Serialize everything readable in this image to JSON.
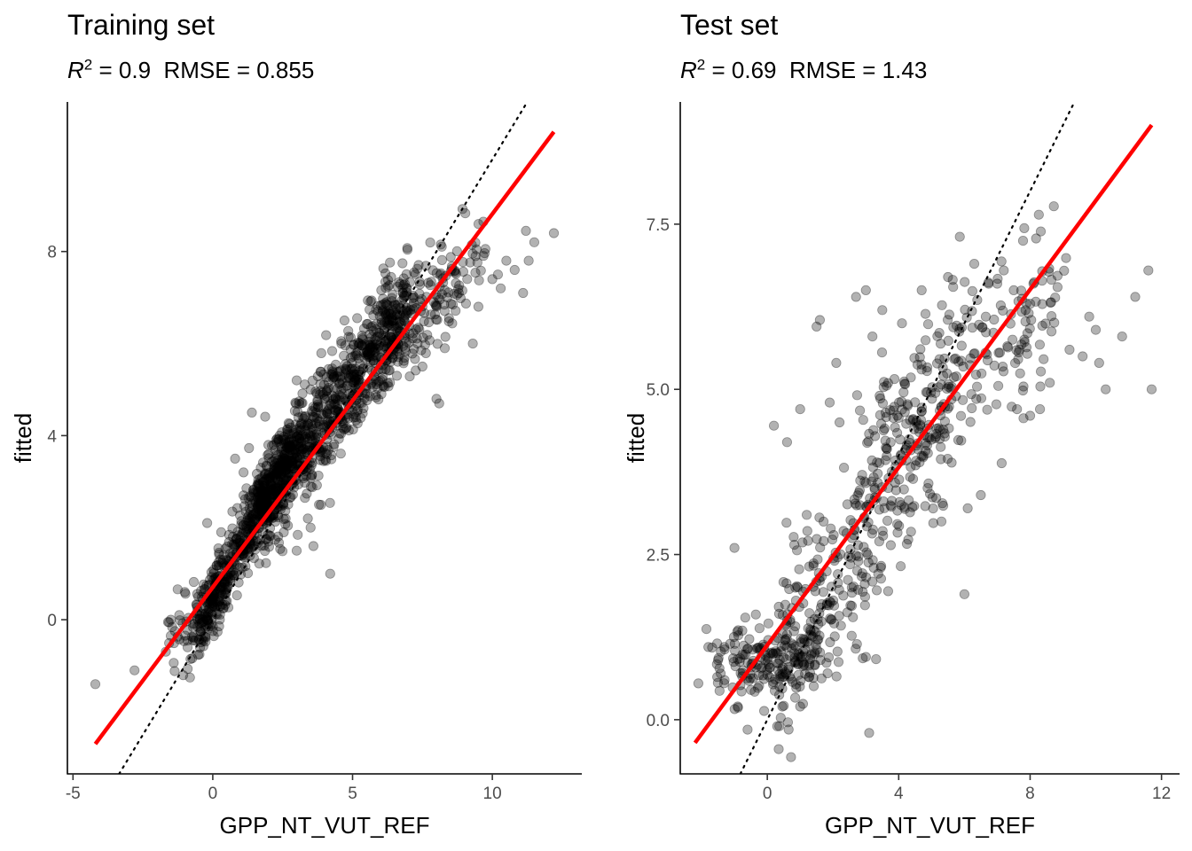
{
  "chart_data": [
    {
      "type": "scatter",
      "title": "Training set",
      "subtitle": {
        "r2_label": "R",
        "r2_exp": "2",
        "r2_value": " = 0.9",
        "rmse_text": "RMSE = 0.855"
      },
      "xlabel": "GPP_NT_VUT_REF",
      "ylabel": "fitted",
      "xlim": [
        -5.2,
        13.2
      ],
      "ylim": [
        -3.35,
        11.25
      ],
      "xticks": [
        -5,
        0,
        5,
        10
      ],
      "xtick_labels": [
        "-5",
        "0",
        "5",
        "10"
      ],
      "yticks": [
        0,
        4,
        8
      ],
      "ytick_labels": [
        "0",
        "4",
        "8"
      ],
      "grid": false,
      "identity_line": {
        "style": "dotted",
        "color": "#000000"
      },
      "fit_line": {
        "x": [
          -4.2,
          12.2
        ],
        "y": [
          -2.7,
          10.6
        ],
        "color": "#ff0000"
      },
      "points_color": "#000000",
      "points_opacity": 0.3,
      "point_clouds": [
        {
          "x": [
            -0.5,
            3.0
          ],
          "y_intercept": 0.45,
          "slope": 1.15,
          "spread": 0.38,
          "n": 520
        },
        {
          "x": [
            1.5,
            7.0
          ],
          "y_intercept": 1.0,
          "slope": 0.85,
          "spread": 0.6,
          "n": 850
        },
        {
          "x": [
            6.0,
            9.5
          ],
          "y_intercept": 2.2,
          "slope": 0.6,
          "spread": 0.55,
          "n": 170
        },
        {
          "x": [
            -1.6,
            0.5
          ],
          "y_intercept": 0.3,
          "slope": 0.6,
          "spread": 0.4,
          "n": 70
        }
      ],
      "points": [
        [
          -4.2,
          -1.4
        ],
        [
          -2.8,
          -1.1
        ],
        [
          -1.5,
          -0.35
        ],
        [
          -1.6,
          -0.05
        ],
        [
          -1.5,
          0.0
        ],
        [
          -1.2,
          0.1
        ],
        [
          -0.9,
          -0.6
        ],
        [
          -0.7,
          -0.4
        ],
        [
          -1.0,
          0.6
        ],
        [
          -0.2,
          2.1
        ],
        [
          0.3,
          1.9
        ],
        [
          0.5,
          1.3
        ],
        [
          0.2,
          1.55
        ],
        [
          0.7,
          2.35
        ],
        [
          1.5,
          2.6
        ],
        [
          1.1,
          3.2
        ],
        [
          0.8,
          3.5
        ],
        [
          1.1,
          2.7
        ],
        [
          1.4,
          4.5
        ],
        [
          2.0,
          3.6
        ],
        [
          2.2,
          3.3
        ],
        [
          3.5,
          2.0
        ],
        [
          3.6,
          1.6
        ],
        [
          4.2,
          1.0
        ],
        [
          3.0,
          1.5
        ],
        [
          3.8,
          2.5
        ],
        [
          3.4,
          2.2
        ],
        [
          4.1,
          4.2
        ],
        [
          3.5,
          5.0
        ],
        [
          3.0,
          5.2
        ],
        [
          4.6,
          6.0
        ],
        [
          6.3,
          6.7
        ],
        [
          6.8,
          6.7
        ],
        [
          7.5,
          5.5
        ],
        [
          8.3,
          5.9
        ],
        [
          8.1,
          4.7
        ],
        [
          8.0,
          4.8
        ],
        [
          9.3,
          6.0
        ],
        [
          8.0,
          6.8
        ],
        [
          9.5,
          6.8
        ],
        [
          10.2,
          7.5
        ],
        [
          10.3,
          7.2
        ],
        [
          10.5,
          7.8
        ],
        [
          10.8,
          7.6
        ],
        [
          11.3,
          7.8
        ],
        [
          11.1,
          7.1
        ],
        [
          11.5,
          8.2
        ],
        [
          11.2,
          8.45
        ],
        [
          12.2,
          8.4
        ],
        [
          10.0,
          7.4
        ],
        [
          9.4,
          7.9
        ],
        [
          8.8,
          7.1
        ]
      ]
    },
    {
      "type": "scatter",
      "title": "Test set",
      "subtitle": {
        "r2_label": "R",
        "r2_exp": "2",
        "r2_value": " = 0.69",
        "rmse_text": "RMSE = 1.43"
      },
      "xlabel": "GPP_NT_VUT_REF",
      "ylabel": "fitted",
      "xlim": [
        -2.65,
        12.55
      ],
      "ylim": [
        -0.82,
        9.35
      ],
      "xticks": [
        0,
        4,
        8,
        12
      ],
      "xtick_labels": [
        "0",
        "4",
        "8",
        "12"
      ],
      "yticks": [
        0.0,
        2.5,
        5.0,
        7.5
      ],
      "ytick_labels": [
        "0.0",
        "2.5",
        "5.0",
        "7.5"
      ],
      "grid": false,
      "identity_line": {
        "style": "dotted",
        "color": "#000000"
      },
      "fit_line": {
        "x": [
          -2.2,
          11.7
        ],
        "y": [
          -0.35,
          9.0
        ],
        "color": "#ff0000"
      },
      "points_color": "#000000",
      "points_opacity": 0.3,
      "point_clouds": [
        {
          "x": [
            -1.5,
            1.8
          ],
          "y_intercept": 0.9,
          "slope": 0.05,
          "spread": 0.3,
          "n": 180
        },
        {
          "x": [
            0.5,
            5.5
          ],
          "y_intercept": 0.6,
          "slope": 0.75,
          "spread": 0.75,
          "n": 330
        },
        {
          "x": [
            3.0,
            8.8
          ],
          "y_intercept": 3.0,
          "slope": 0.38,
          "spread": 0.65,
          "n": 220
        }
      ],
      "points": [
        [
          -2.1,
          0.55
        ],
        [
          -1.0,
          2.6
        ],
        [
          -1.5,
          0.9
        ],
        [
          -1.3,
          0.6
        ],
        [
          -0.9,
          0.2
        ],
        [
          -0.6,
          -0.15
        ],
        [
          0.2,
          4.45
        ],
        [
          0.6,
          4.2
        ],
        [
          1.0,
          4.7
        ],
        [
          1.6,
          6.05
        ],
        [
          1.5,
          5.95
        ],
        [
          1.9,
          4.8
        ],
        [
          2.1,
          5.4
        ],
        [
          2.2,
          4.5
        ],
        [
          2.7,
          6.4
        ],
        [
          3.0,
          6.5
        ],
        [
          3.2,
          5.8
        ],
        [
          3.5,
          6.2
        ],
        [
          4.1,
          6.0
        ],
        [
          4.7,
          6.5
        ],
        [
          5.5,
          6.7
        ],
        [
          6.3,
          6.9
        ],
        [
          7.2,
          6.8
        ],
        [
          7.0,
          6.6
        ],
        [
          7.5,
          6.5
        ],
        [
          8.1,
          6.6
        ],
        [
          8.0,
          4.6
        ],
        [
          7.6,
          4.7
        ],
        [
          8.6,
          5.1
        ],
        [
          8.3,
          4.7
        ],
        [
          9.2,
          5.6
        ],
        [
          9.6,
          5.5
        ],
        [
          10.3,
          5.0
        ],
        [
          10.8,
          5.8
        ],
        [
          11.2,
          6.4
        ],
        [
          11.6,
          6.8
        ],
        [
          11.7,
          5.0
        ],
        [
          10.0,
          5.9
        ],
        [
          10.1,
          5.4
        ],
        [
          9.8,
          6.1
        ],
        [
          6.5,
          3.4
        ],
        [
          6.1,
          3.2
        ],
        [
          5.3,
          3.0
        ],
        [
          6.0,
          1.9
        ],
        [
          3.1,
          -0.2
        ],
        [
          0.3,
          -0.1
        ],
        [
          1.0,
          0.2
        ],
        [
          3.0,
          0.95
        ],
        [
          0.6,
          1.5
        ],
        [
          1.2,
          3.1
        ]
      ]
    }
  ]
}
